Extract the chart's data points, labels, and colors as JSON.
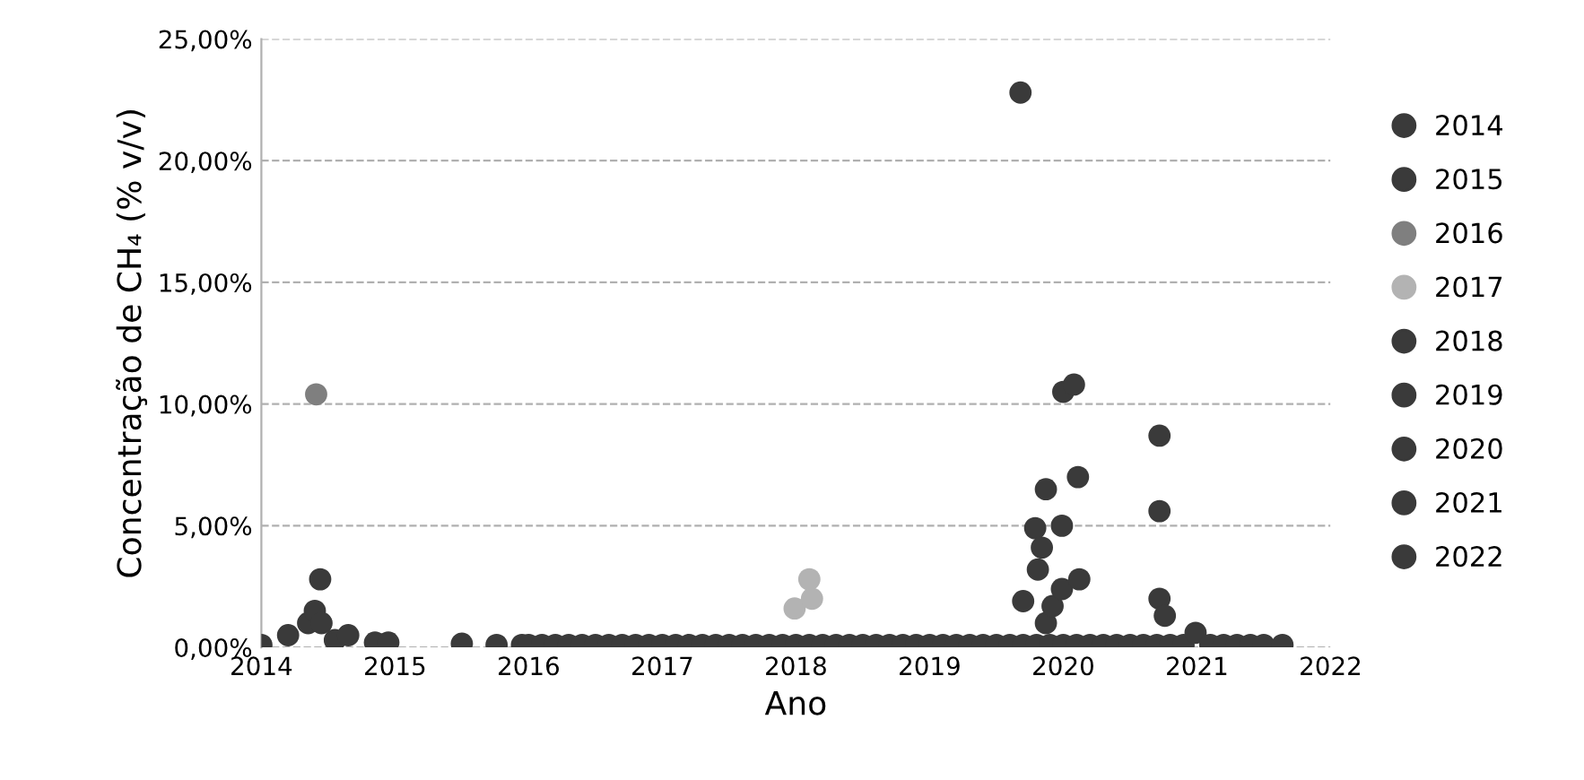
{
  "chart_data": {
    "type": "scatter",
    "xlabel": "Ano",
    "ylabel": "Concentração de CH₄ (% v/v)",
    "xlim": [
      2014,
      2022
    ],
    "xticks": [
      2014,
      2015,
      2016,
      2017,
      2018,
      2019,
      2020,
      2021,
      2022
    ],
    "ylim": [
      0,
      25
    ],
    "yticks": [
      {
        "value": 0,
        "label": "0,00%"
      },
      {
        "value": 5,
        "label": "5,00%"
      },
      {
        "value": 10,
        "label": "10,00%"
      },
      {
        "value": 15,
        "label": "15,00%"
      },
      {
        "value": 20,
        "label": "20,00%"
      },
      {
        "value": 25,
        "label": "25,00%"
      }
    ],
    "grid": "y",
    "legend": "right",
    "marker": "circle",
    "series": [
      {
        "name": "2014",
        "color": "#3a3a3a",
        "x": [
          2014.0,
          2014.2,
          2014.35,
          2014.4,
          2014.45,
          2014.55,
          2014.65,
          2014.44,
          2014.85,
          2014.95
        ],
        "values": [
          0.1,
          0.5,
          1.0,
          1.5,
          1.0,
          0.3,
          0.5,
          2.8,
          0.2,
          0.2
        ]
      },
      {
        "name": "2015",
        "color": "#3a3a3a",
        "x": [
          2015.5,
          2015.76,
          2015.95
        ],
        "values": [
          0.15,
          0.1,
          0.1
        ]
      },
      {
        "name": "2016",
        "color": "#7f7f7f",
        "x": [
          2014.41
        ],
        "values": [
          10.4
        ]
      },
      {
        "name": "2017",
        "color": "#b3b3b3",
        "x": [
          2017.99,
          2018.1,
          2018.12
        ],
        "values": [
          1.6,
          2.8,
          2.0
        ]
      },
      {
        "name": "2018",
        "color": "#3a3a3a",
        "x": [
          2016.0,
          2016.1,
          2016.2,
          2016.3,
          2016.4,
          2016.5,
          2016.6,
          2016.7,
          2016.8,
          2016.9,
          2017.0,
          2017.1,
          2017.2,
          2017.3,
          2017.4,
          2017.5,
          2017.6,
          2017.7,
          2017.8,
          2017.9,
          2018.0,
          2018.1,
          2018.2,
          2018.3,
          2018.4,
          2018.5,
          2018.6,
          2018.7,
          2018.8,
          2018.9
        ],
        "values": [
          0.1,
          0.1,
          0.1,
          0.1,
          0.1,
          0.1,
          0.1,
          0.1,
          0.1,
          0.1,
          0.1,
          0.1,
          0.1,
          0.1,
          0.1,
          0.1,
          0.1,
          0.1,
          0.1,
          0.1,
          0.1,
          0.1,
          0.1,
          0.1,
          0.1,
          0.1,
          0.1,
          0.1,
          0.1,
          0.1
        ]
      },
      {
        "name": "2019",
        "color": "#3a3a3a",
        "x": [
          2019.0,
          2019.1,
          2019.2,
          2019.3,
          2019.4,
          2019.5,
          2019.6,
          2019.7,
          2019.8,
          2019.9,
          2019.68,
          2019.7,
          2019.79,
          2019.81,
          2019.84,
          2019.87,
          2019.87,
          2019.92,
          2019.99,
          2019.99
        ],
        "values": [
          0.1,
          0.1,
          0.1,
          0.1,
          0.1,
          0.1,
          0.1,
          0.1,
          0.1,
          0.1,
          22.8,
          1.9,
          4.9,
          3.2,
          4.1,
          6.5,
          1.0,
          1.7,
          5.0,
          2.4
        ]
      },
      {
        "name": "2020",
        "color": "#3a3a3a",
        "x": [
          2020.0,
          2020.1,
          2020.2,
          2020.3,
          2020.4,
          2020.5,
          2020.6,
          2020.7,
          2020.8,
          2020.9,
          2020.0,
          2020.08,
          2020.11,
          2020.12,
          2020.72,
          2020.72,
          2020.72,
          2020.76,
          2020.99
        ],
        "values": [
          0.1,
          0.1,
          0.1,
          0.1,
          0.1,
          0.1,
          0.1,
          0.1,
          0.1,
          0.1,
          10.5,
          10.8,
          7.0,
          2.8,
          8.7,
          5.6,
          2.0,
          1.3,
          0.6
        ]
      },
      {
        "name": "2021",
        "color": "#3a3a3a",
        "x": [
          2021.1,
          2021.2,
          2021.3,
          2021.4,
          2021.5,
          2021.64
        ],
        "values": [
          0.1,
          0.1,
          0.1,
          0.1,
          0.1,
          0.1
        ]
      },
      {
        "name": "2022",
        "color": "#3a3a3a"
      }
    ]
  }
}
